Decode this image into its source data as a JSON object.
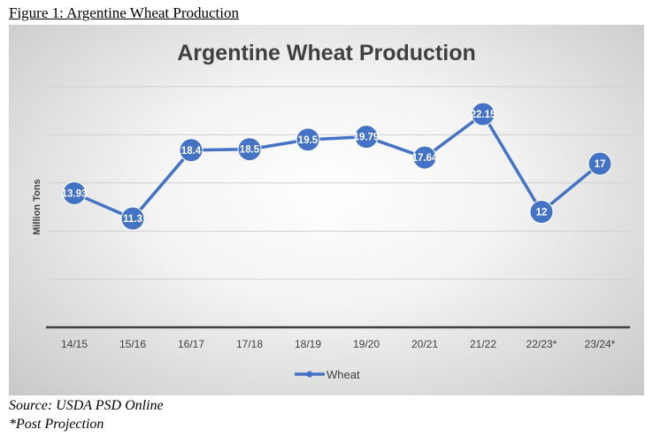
{
  "figure_caption": "Figure 1: Argentine Wheat Production",
  "source": "Source: USDA PSD Online",
  "footnote": "*Post Projection",
  "chart_data": {
    "type": "line",
    "title": "Argentine Wheat Production",
    "xlabel": "",
    "ylabel": "Million Tons",
    "categories": [
      "14/15",
      "15/16",
      "16/17",
      "17/18",
      "18/19",
      "19/20",
      "20/21",
      "21/22",
      "22/23*",
      "23/24*"
    ],
    "series": [
      {
        "name": "Wheat",
        "values": [
          13.93,
          11.3,
          18.4,
          18.5,
          19.5,
          19.79,
          17.64,
          22.15,
          12,
          17
        ],
        "color": "#4472c4"
      }
    ],
    "ylim": [
      0,
      25
    ],
    "gridlines": [
      0,
      5,
      10,
      15,
      20,
      25
    ],
    "grid": true,
    "legend": "bottom-center"
  }
}
